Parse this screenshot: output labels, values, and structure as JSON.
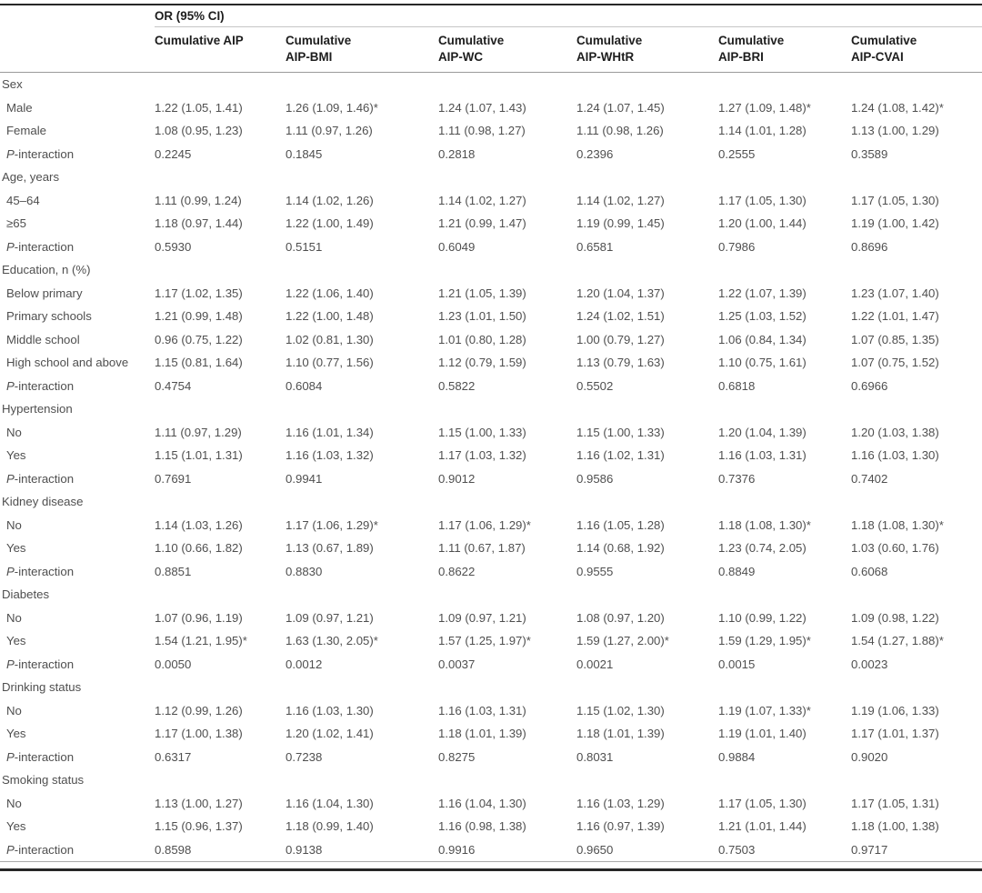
{
  "table": {
    "spanner": "OR (95% CI)",
    "columns": [
      {
        "lines": [
          "Cumulative AIP"
        ]
      },
      {
        "lines": [
          "Cumulative",
          "AIP-BMI"
        ]
      },
      {
        "lines": [
          "Cumulative",
          "AIP-WC"
        ]
      },
      {
        "lines": [
          "Cumulative",
          "AIP-WHtR"
        ]
      },
      {
        "lines": [
          "Cumulative",
          "AIP-BRI"
        ]
      },
      {
        "lines": [
          "Cumulative",
          "AIP-CVAI"
        ]
      }
    ],
    "p_label": {
      "italic": "P",
      "rest": "-interaction"
    },
    "sections": [
      {
        "header": "Sex",
        "rows": [
          {
            "label": "Male",
            "values": [
              "1.22 (1.05, 1.41)",
              "1.26 (1.09, 1.46)*",
              "1.24 (1.07, 1.43)",
              "1.24 (1.07, 1.45)",
              "1.27 (1.09, 1.48)*",
              "1.24 (1.08, 1.42)*"
            ]
          },
          {
            "label": "Female",
            "values": [
              "1.08 (0.95, 1.23)",
              "1.11 (0.97, 1.26)",
              "1.11 (0.98, 1.27)",
              "1.11 (0.98, 1.26)",
              "1.14 (1.01, 1.28)",
              "1.13 (1.00, 1.29)"
            ]
          },
          {
            "label": "P-interaction",
            "p_row": true,
            "values": [
              "0.2245",
              "0.1845",
              "0.2818",
              "0.2396",
              "0.2555",
              "0.3589"
            ]
          }
        ]
      },
      {
        "header": "Age, years",
        "rows": [
          {
            "label": "45–64",
            "values": [
              "1.11 (0.99, 1.24)",
              "1.14 (1.02, 1.26)",
              "1.14 (1.02, 1.27)",
              "1.14 (1.02, 1.27)",
              "1.17 (1.05, 1.30)",
              "1.17 (1.05, 1.30)"
            ]
          },
          {
            "label": "≥65",
            "values": [
              "1.18 (0.97, 1.44)",
              "1.22 (1.00, 1.49)",
              "1.21 (0.99, 1.47)",
              "1.19 (0.99, 1.45)",
              "1.20 (1.00, 1.44)",
              "1.19 (1.00, 1.42)"
            ]
          },
          {
            "label": "P-interaction",
            "p_row": true,
            "values": [
              "0.5930",
              "0.5151",
              "0.6049",
              "0.6581",
              "0.7986",
              "0.8696"
            ]
          }
        ]
      },
      {
        "header": "Education, n (%)",
        "rows": [
          {
            "label": "Below primary",
            "values": [
              "1.17 (1.02, 1.35)",
              "1.22 (1.06, 1.40)",
              "1.21 (1.05, 1.39)",
              "1.20 (1.04, 1.37)",
              "1.22 (1.07, 1.39)",
              "1.23 (1.07, 1.40)"
            ]
          },
          {
            "label": "Primary schools",
            "values": [
              "1.21 (0.99, 1.48)",
              "1.22 (1.00, 1.48)",
              "1.23 (1.01, 1.50)",
              "1.24 (1.02, 1.51)",
              "1.25 (1.03, 1.52)",
              "1.22 (1.01, 1.47)"
            ]
          },
          {
            "label": "Middle school",
            "values": [
              "0.96 (0.75, 1.22)",
              "1.02 (0.81, 1.30)",
              "1.01 (0.80, 1.28)",
              "1.00 (0.79, 1.27)",
              "1.06 (0.84, 1.34)",
              "1.07 (0.85, 1.35)"
            ]
          },
          {
            "label": "High school and above",
            "values": [
              "1.15 (0.81, 1.64)",
              "1.10 (0.77, 1.56)",
              "1.12 (0.79, 1.59)",
              "1.13 (0.79, 1.63)",
              "1.10 (0.75, 1.61)",
              "1.07 (0.75, 1.52)"
            ]
          },
          {
            "label": "P-interaction",
            "p_row": true,
            "values": [
              "0.4754",
              "0.6084",
              "0.5822",
              "0.5502",
              "0.6818",
              "0.6966"
            ]
          }
        ]
      },
      {
        "header": "Hypertension",
        "rows": [
          {
            "label": "No",
            "values": [
              "1.11 (0.97, 1.29)",
              "1.16 (1.01, 1.34)",
              "1.15 (1.00, 1.33)",
              "1.15 (1.00, 1.33)",
              "1.20 (1.04, 1.39)",
              "1.20 (1.03, 1.38)"
            ]
          },
          {
            "label": "Yes",
            "values": [
              "1.15 (1.01, 1.31)",
              "1.16 (1.03, 1.32)",
              "1.17 (1.03, 1.32)",
              "1.16 (1.02, 1.31)",
              "1.16 (1.03, 1.31)",
              "1.16 (1.03, 1.30)"
            ]
          },
          {
            "label": "P-interaction",
            "p_row": true,
            "values": [
              "0.7691",
              "0.9941",
              "0.9012",
              "0.9586",
              "0.7376",
              "0.7402"
            ]
          }
        ]
      },
      {
        "header": "Kidney disease",
        "rows": [
          {
            "label": "No",
            "values": [
              "1.14 (1.03, 1.26)",
              "1.17 (1.06, 1.29)*",
              "1.17 (1.06, 1.29)*",
              "1.16 (1.05, 1.28)",
              "1.18 (1.08, 1.30)*",
              "1.18 (1.08, 1.30)*"
            ]
          },
          {
            "label": "Yes",
            "values": [
              "1.10 (0.66, 1.82)",
              "1.13 (0.67, 1.89)",
              "1.11 (0.67, 1.87)",
              "1.14 (0.68, 1.92)",
              "1.23 (0.74, 2.05)",
              "1.03 (0.60, 1.76)"
            ]
          },
          {
            "label": "P-interaction",
            "p_row": true,
            "values": [
              "0.8851",
              "0.8830",
              "0.8622",
              "0.9555",
              "0.8849",
              "0.6068"
            ]
          }
        ]
      },
      {
        "header": "Diabetes",
        "rows": [
          {
            "label": "No",
            "values": [
              "1.07 (0.96, 1.19)",
              "1.09 (0.97, 1.21)",
              "1.09 (0.97, 1.21)",
              "1.08 (0.97, 1.20)",
              "1.10 (0.99, 1.22)",
              "1.09 (0.98, 1.22)"
            ]
          },
          {
            "label": "Yes",
            "values": [
              "1.54 (1.21, 1.95)*",
              "1.63 (1.30, 2.05)*",
              "1.57 (1.25, 1.97)*",
              "1.59 (1.27, 2.00)*",
              "1.59 (1.29, 1.95)*",
              "1.54 (1.27, 1.88)*"
            ]
          },
          {
            "label": "P-interaction",
            "p_row": true,
            "values": [
              "0.0050",
              "0.0012",
              "0.0037",
              "0.0021",
              "0.0015",
              "0.0023"
            ]
          }
        ]
      },
      {
        "header": "Drinking status",
        "rows": [
          {
            "label": "No",
            "values": [
              "1.12 (0.99, 1.26)",
              "1.16 (1.03, 1.30)",
              "1.16 (1.03, 1.31)",
              "1.15 (1.02, 1.30)",
              "1.19 (1.07, 1.33)*",
              "1.19 (1.06, 1.33)"
            ]
          },
          {
            "label": "Yes",
            "values": [
              "1.17 (1.00, 1.38)",
              "1.20 (1.02, 1.41)",
              "1.18 (1.01, 1.39)",
              "1.18 (1.01, 1.39)",
              "1.19 (1.01, 1.40)",
              "1.17 (1.01, 1.37)"
            ]
          },
          {
            "label": "P-interaction",
            "p_row": true,
            "values": [
              "0.6317",
              "0.7238",
              "0.8275",
              "0.8031",
              "0.9884",
              "0.9020"
            ]
          }
        ]
      },
      {
        "header": "Smoking status",
        "rows": [
          {
            "label": "No",
            "values": [
              "1.13 (1.00, 1.27)",
              "1.16 (1.04, 1.30)",
              "1.16 (1.04, 1.30)",
              "1.16 (1.03, 1.29)",
              "1.17 (1.05, 1.30)",
              "1.17 (1.05, 1.31)"
            ]
          },
          {
            "label": "Yes",
            "values": [
              "1.15 (0.96, 1.37)",
              "1.18 (0.99, 1.40)",
              "1.16 (0.98, 1.38)",
              "1.16 (0.97, 1.39)",
              "1.21 (1.01, 1.44)",
              "1.18 (1.00, 1.38)"
            ]
          },
          {
            "label": "P-interaction",
            "p_row": true,
            "values": [
              "0.8598",
              "0.9138",
              "0.9916",
              "0.9650",
              "0.7503",
              "0.9717"
            ]
          }
        ]
      }
    ]
  }
}
